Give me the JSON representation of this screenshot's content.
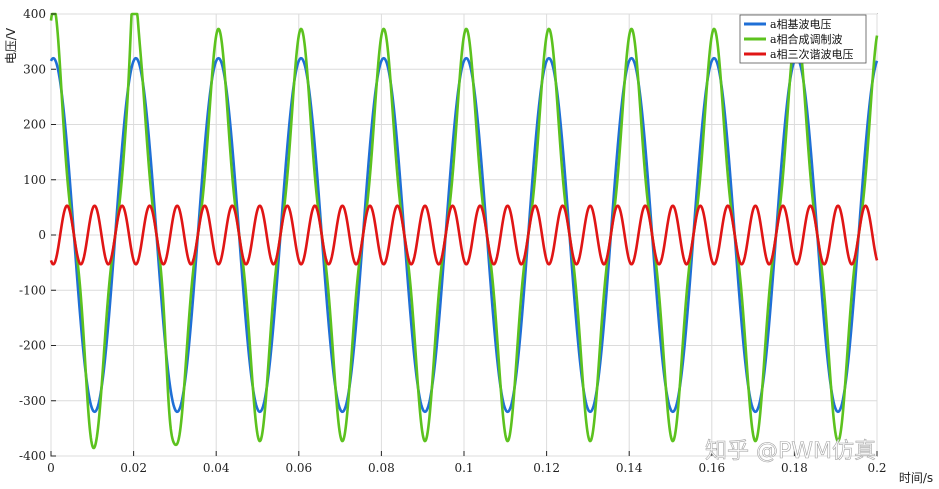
{
  "chart_data": {
    "type": "line",
    "title": "",
    "xlabel": "时间/s",
    "ylabel": "电压/V",
    "xlim": [
      0,
      0.2
    ],
    "ylim": [
      -400,
      400
    ],
    "xticks": [
      0,
      0.02,
      0.04,
      0.06,
      0.08,
      0.1,
      0.12,
      0.14,
      0.16,
      0.18,
      0.2
    ],
    "xtick_labels": [
      "0",
      "0.02",
      "0.04",
      "0.06",
      "0.08",
      "0.1",
      "0.12",
      "0.14",
      "0.16",
      "0.18",
      "0.2"
    ],
    "yticks": [
      -400,
      -300,
      -200,
      -100,
      0,
      100,
      200,
      300,
      400
    ],
    "ytick_labels": [
      "-400",
      "-300",
      "-200",
      "-100",
      "0",
      "100",
      "200",
      "300",
      "400"
    ],
    "grid": true,
    "legend_position": "top-right",
    "series": [
      {
        "name": "a相基波电压",
        "color": "#1f6fd6",
        "amplitude": 320,
        "frequency_hz": 50,
        "phase_deg": 80,
        "description_values": {
          "peak": 320,
          "trough": -320
        }
      },
      {
        "name": "a相合成调制波",
        "color": "#5cc21e",
        "fundamental_amplitude": 320,
        "third_harmonic_amplitude": 53,
        "settled_peak": 275,
        "initial_peak": 365,
        "initial_trough": -333
      },
      {
        "name": "a相三次谐波电压",
        "color": "#e01515",
        "amplitude": 53,
        "frequency_hz": 150
      }
    ]
  },
  "watermark": "知乎 @PWM仿真"
}
